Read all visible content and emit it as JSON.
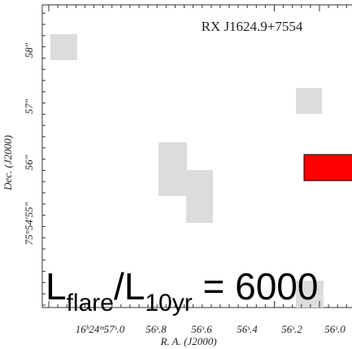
{
  "title": "RX J1624.9+7554",
  "y_axis": {
    "label": "Dec. (J2000)",
    "ticks": [
      "58″",
      "57″",
      "56″",
      "75°54′55″"
    ]
  },
  "x_axis": {
    "label": "R. A. (J2000)",
    "ticks": [
      "16ʰ24ᵐ57ˢ.0",
      "56ˢ.8",
      "56ˢ.6",
      "56ˢ.4",
      "56ˢ.2",
      "56ˢ.0"
    ]
  },
  "annotation": {
    "l1": "L",
    "sub1": "flare",
    "slash": "/L",
    "sub2": "10yr",
    "tail": " = 6000"
  }
}
